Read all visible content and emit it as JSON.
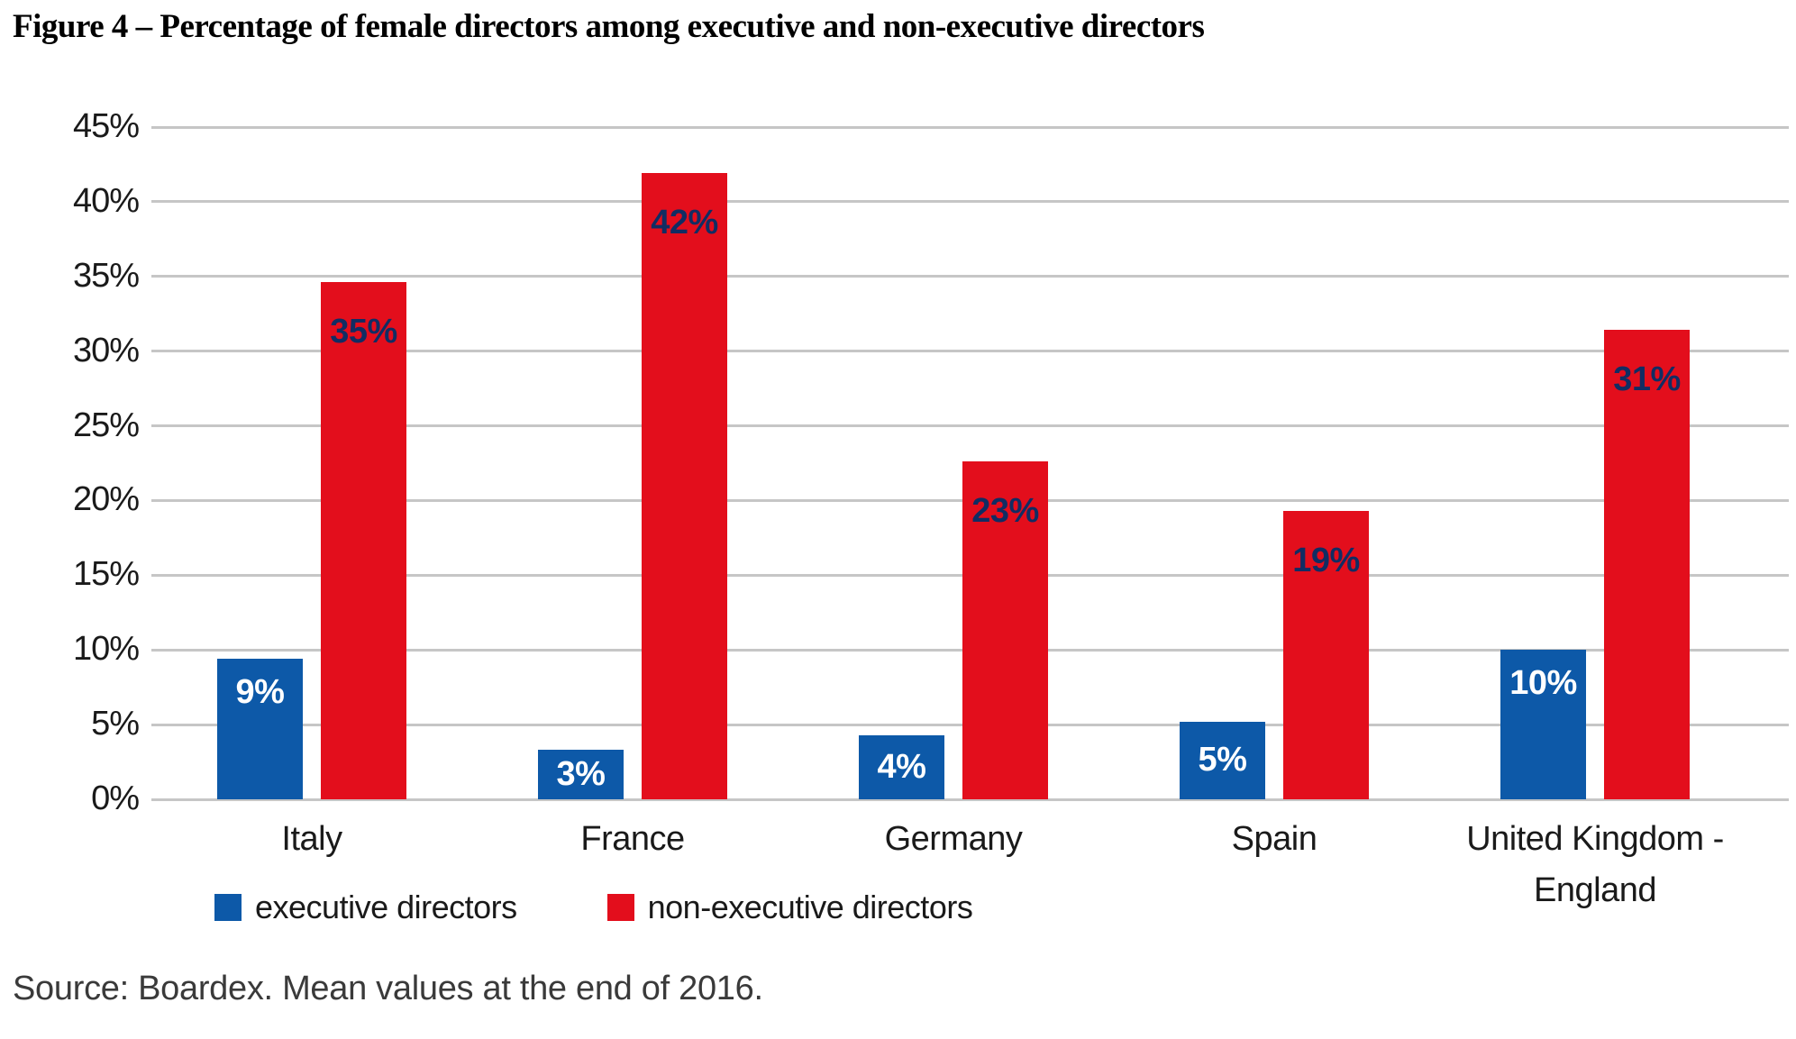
{
  "figure": {
    "title": "Figure 4 – Percentage of female directors among executive and non-executive directors",
    "source_note": "Source: Boardex. Mean values at the end of 2016."
  },
  "colors": {
    "executive_blue": "#0D59A8",
    "non_executive_red": "#E30E1C",
    "label_on_blue": "#FFFFFF",
    "label_on_red": "#112D63",
    "gridline_gray": "#C6C6C6"
  },
  "chart_data": {
    "type": "bar",
    "title": "Percentage of female directors among executive and non-executive directors",
    "categories": [
      "Italy",
      "France",
      "Germany",
      "Spain",
      "United Kingdom - England"
    ],
    "series": [
      {
        "name": "executive directors",
        "color": "#0D59A8",
        "label_color": "#FFFFFF",
        "values": [
          9.4,
          3.3,
          4.3,
          5.2,
          10.0
        ],
        "data_labels": [
          "9%",
          "3%",
          "4%",
          "5%",
          "10%"
        ]
      },
      {
        "name": "non-executive directors",
        "color": "#E30E1C",
        "label_color": "#112D63",
        "values": [
          34.6,
          41.9,
          22.6,
          19.3,
          31.4
        ],
        "data_labels": [
          "35%",
          "42%",
          "23%",
          "19%",
          "31%"
        ]
      }
    ],
    "xlabel": "",
    "ylabel": "",
    "ylim": [
      0,
      45
    ],
    "ytick_step": 5,
    "ytick_labels": [
      "0%",
      "5%",
      "10%",
      "15%",
      "20%",
      "25%",
      "30%",
      "35%",
      "40%",
      "45%"
    ],
    "grid": true,
    "legend_position": "bottom"
  }
}
